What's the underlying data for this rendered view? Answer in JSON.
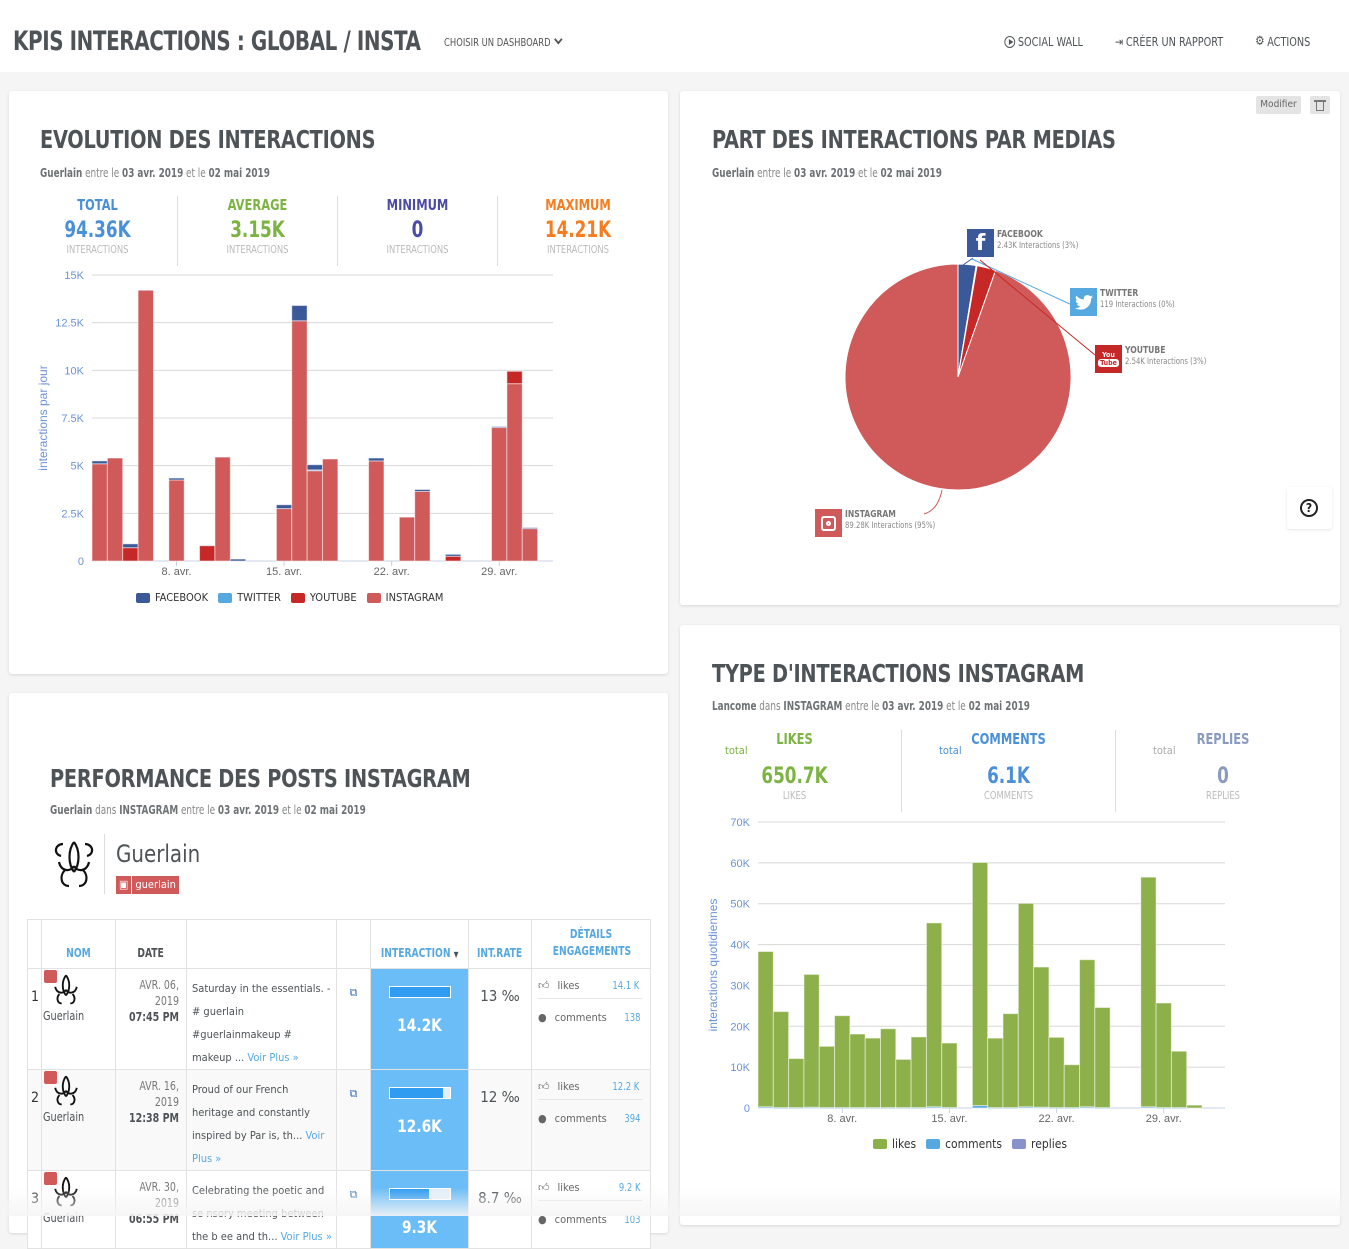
{
  "header": {
    "title": "KPIS INTERACTIONS : GLOBAL / INSTA",
    "dashboard_select": "CHOISIR UN DASHBOARD",
    "actions": [
      {
        "label": "SOCIAL WALL",
        "icon": "play-circle-icon"
      },
      {
        "label": "CRÉER UN RAPPORT",
        "icon": "sign-in-icon"
      },
      {
        "label": "ACTIONS",
        "icon": "gear-icon"
      }
    ]
  },
  "evolution": {
    "title": "EVOLUTION DES INTERACTIONS",
    "subtitle": {
      "brand": "Guerlain",
      "t1": "entre le",
      "d1": "03 avr. 2019",
      "t2": "et le",
      "d2": "02 mai 2019"
    },
    "kpis": [
      {
        "label": "TOTAL",
        "value": "94.36K",
        "unit": "INTERACTIONS",
        "color": "#4a90d9"
      },
      {
        "label": "AVERAGE",
        "value": "3.15K",
        "unit": "INTERACTIONS",
        "color": "#7cb342"
      },
      {
        "label": "MINIMUM",
        "value": "0",
        "unit": "INTERACTIONS",
        "color": "#4b4ba3"
      },
      {
        "label": "MAXIMUM",
        "value": "14.21K",
        "unit": "INTERACTIONS",
        "color": "#f57c1f"
      }
    ]
  },
  "medias": {
    "title": "PART DES INTERACTIONS PAR MEDIAS",
    "subtitle": {
      "brand": "Guerlain",
      "t1": "entre le",
      "d1": "03 avr. 2019",
      "t2": "et le",
      "d2": "02 mai 2019"
    },
    "modify_label": "Modifier",
    "labels": [
      {
        "name": "FACEBOOK",
        "detail": "2.43K Interactions (3%)"
      },
      {
        "name": "TWITTER",
        "detail": "119 Interactions (0%)"
      },
      {
        "name": "YOUTUBE",
        "detail": "2.54K Interactions (3%)"
      },
      {
        "name": "INSTAGRAM",
        "detail": "89.28K Interactions (95%)"
      }
    ]
  },
  "types": {
    "title": "TYPE D'INTERACTIONS INSTAGRAM",
    "subtitle": {
      "brand": "Lancome",
      "t0": "dans",
      "network": "INSTAGRAM",
      "t1": "entre le",
      "d1": "03 avr. 2019",
      "t2": "et le",
      "d2": "02 mai 2019"
    },
    "kpis": [
      {
        "label": "LIKES",
        "total": "total",
        "value": "650.7K",
        "unit": "LIKES",
        "color": "#7cb342"
      },
      {
        "label": "COMMENTS",
        "total": "total",
        "value": "6.1K",
        "unit": "COMMENTS",
        "color": "#4a90d9"
      },
      {
        "label": "REPLIES",
        "total": "total",
        "value": "0",
        "unit": "REPLIES",
        "color": "#8a9bbf"
      }
    ]
  },
  "posts": {
    "title": "PERFORMANCE DES POSTS INSTAGRAM",
    "subtitle": {
      "brand": "Guerlain",
      "t0": "dans",
      "network": "INSTAGRAM",
      "t1": "entre le",
      "d1": "03 avr. 2019",
      "t2": "et le",
      "d2": "02 mai 2019"
    },
    "profile": {
      "name": "Guerlain",
      "handle": "guerlain"
    },
    "columns": [
      "",
      "NOM",
      "DATE",
      "",
      "",
      "INTERACTION",
      "INT.RATE",
      "DÉTAILS ENGAGEMENTS"
    ],
    "rows": [
      {
        "rank": "1",
        "name": "Guerlain",
        "date": "AVR. 06,",
        "year": "2019",
        "time": "07:45 PM",
        "text": "Saturday in the essentials. - # guerlain #guerlainmakeup # makeup ...",
        "more": "Voir Plus »",
        "interaction": "14.2K",
        "interaction_ratio": 1.0,
        "rate": "13 ‰",
        "likes_label": "likes",
        "likes": "14.1 K",
        "comments_label": "comments",
        "comments": "138"
      },
      {
        "rank": "2",
        "name": "Guerlain",
        "date": "AVR. 16,",
        "year": "2019",
        "time": "12:38 PM",
        "text": "Proud of our French heritage and constantly inspired by Par is, th...",
        "more": "Voir Plus »",
        "interaction": "12.6K",
        "interaction_ratio": 0.89,
        "rate": "12 ‰",
        "likes_label": "likes",
        "likes": "12.2 K",
        "comments_label": "comments",
        "comments": "394"
      },
      {
        "rank": "3",
        "name": "Guerlain",
        "date": "AVR. 30,",
        "year": "2019",
        "time": "06:55 PM",
        "text": "Celebrating the poetic and se nsory meeting between the b ee and th...",
        "more": "Voir Plus »",
        "interaction": "9.3K",
        "interaction_ratio": 0.65,
        "rate": "8.7 ‰",
        "likes_label": "likes",
        "likes": "9.2 K",
        "comments_label": "comments",
        "comments": "103"
      }
    ]
  },
  "chart_data": [
    {
      "type": "bar",
      "stacked": true,
      "title": "EVOLUTION DES INTERACTIONS",
      "ylabel": "interactions par jour",
      "xlabel": "",
      "ylim": [
        0,
        15000
      ],
      "yticks": [
        0,
        2500,
        5000,
        7500,
        10000,
        12500,
        15000
      ],
      "ytick_labels": [
        "0",
        "2.5K",
        "5K",
        "7.5K",
        "10K",
        "12.5K",
        "15K"
      ],
      "xtick_labels": [
        {
          "day": 5,
          "label": "8. avr."
        },
        {
          "day": 12,
          "label": "15. avr."
        },
        {
          "day": 19,
          "label": "22. avr."
        },
        {
          "day": 26,
          "label": "29. avr."
        }
      ],
      "categories": [
        "03/04",
        "04/04",
        "05/04",
        "06/04",
        "07/04",
        "08/04",
        "09/04",
        "10/04",
        "11/04",
        "12/04",
        "13/04",
        "14/04",
        "15/04",
        "16/04",
        "17/04",
        "18/04",
        "19/04",
        "20/04",
        "21/04",
        "22/04",
        "23/04",
        "24/04",
        "25/04",
        "26/04",
        "27/04",
        "28/04",
        "29/04",
        "30/04",
        "01/05",
        "02/05"
      ],
      "legend": "bottom",
      "grid": true,
      "series": [
        {
          "name": "INSTAGRAM",
          "color": "#d05a5a",
          "values": [
            5100,
            5400,
            0,
            14200,
            0,
            4250,
            0,
            0,
            5450,
            0,
            0,
            0,
            2750,
            12600,
            4750,
            5350,
            0,
            0,
            5250,
            0,
            2300,
            3650,
            0,
            0,
            0,
            0,
            7000,
            9300,
            1700,
            0
          ]
        },
        {
          "name": "YOUTUBE",
          "color": "#c62828",
          "values": [
            0,
            0,
            700,
            0,
            0,
            0,
            0,
            800,
            0,
            0,
            0,
            0,
            0,
            0,
            0,
            0,
            0,
            0,
            0,
            0,
            0,
            0,
            0,
            250,
            0,
            0,
            0,
            650,
            0,
            0
          ]
        },
        {
          "name": "TWITTER",
          "color": "#56a8e0",
          "values": [
            0,
            0,
            0,
            0,
            0,
            0,
            0,
            0,
            0,
            0,
            0,
            0,
            0,
            0,
            30,
            0,
            0,
            0,
            0,
            0,
            0,
            0,
            0,
            0,
            0,
            0,
            0,
            0,
            0,
            0
          ]
        },
        {
          "name": "FACEBOOK",
          "color": "#3b5998",
          "values": [
            150,
            0,
            200,
            0,
            0,
            100,
            0,
            0,
            0,
            100,
            0,
            0,
            200,
            800,
            270,
            0,
            0,
            0,
            150,
            0,
            0,
            100,
            0,
            100,
            0,
            0,
            50,
            0,
            50,
            0
          ]
        }
      ],
      "legend_order": [
        "FACEBOOK",
        "TWITTER",
        "YOUTUBE",
        "INSTAGRAM"
      ]
    },
    {
      "type": "pie",
      "title": "PART DES INTERACTIONS PAR MEDIAS",
      "slices": [
        {
          "name": "FACEBOOK",
          "value": 2430,
          "color": "#3b5998"
        },
        {
          "name": "TWITTER",
          "value": 119,
          "color": "#56a8e0"
        },
        {
          "name": "YOUTUBE",
          "value": 2540,
          "color": "#c62828"
        },
        {
          "name": "INSTAGRAM",
          "value": 89280,
          "color": "#d05a5a"
        }
      ]
    },
    {
      "type": "bar",
      "stacked": true,
      "title": "TYPE D'INTERACTIONS INSTAGRAM",
      "ylabel": "interactions quotidiennes",
      "xlabel": "",
      "ylim": [
        0,
        70000
      ],
      "yticks": [
        0,
        10000,
        20000,
        30000,
        40000,
        50000,
        60000,
        70000
      ],
      "ytick_labels": [
        "0",
        "10K",
        "20K",
        "30K",
        "40K",
        "50K",
        "60K",
        "70K"
      ],
      "xtick_labels": [
        {
          "day": 5,
          "label": "8. avr."
        },
        {
          "day": 12,
          "label": "15. avr."
        },
        {
          "day": 19,
          "label": "22. avr."
        },
        {
          "day": 26,
          "label": "29. avr."
        }
      ],
      "categories": [
        "03/04",
        "04/04",
        "05/04",
        "06/04",
        "07/04",
        "08/04",
        "09/04",
        "10/04",
        "11/04",
        "12/04",
        "13/04",
        "14/04",
        "15/04",
        "16/04",
        "17/04",
        "18/04",
        "19/04",
        "20/04",
        "21/04",
        "22/04",
        "23/04",
        "24/04",
        "25/04",
        "26/04",
        "27/04",
        "28/04",
        "29/04",
        "30/04",
        "01/05"
      ],
      "legend": "bottom",
      "grid": true,
      "series": [
        {
          "name": "likes",
          "color": "#8db04a",
          "values": [
            38000,
            23500,
            12000,
            32500,
            15000,
            22500,
            18000,
            17000,
            19300,
            11800,
            17300,
            45000,
            15800,
            0,
            59500,
            17000,
            23000,
            49800,
            34300,
            17200,
            10500,
            36000,
            24500,
            0,
            0,
            56200,
            25600,
            13800,
            700
          ]
        },
        {
          "name": "comments",
          "color": "#56a8e0",
          "values": [
            300,
            100,
            100,
            200,
            100,
            100,
            100,
            100,
            100,
            100,
            100,
            300,
            100,
            0,
            600,
            100,
            100,
            300,
            200,
            100,
            100,
            300,
            100,
            0,
            0,
            300,
            100,
            100,
            0
          ]
        },
        {
          "name": "replies",
          "color": "#8a93c9",
          "values": [
            0,
            0,
            0,
            0,
            0,
            0,
            0,
            0,
            0,
            0,
            0,
            0,
            0,
            0,
            0,
            0,
            0,
            0,
            0,
            0,
            0,
            0,
            0,
            0,
            0,
            0,
            0,
            0,
            0
          ]
        }
      ]
    }
  ]
}
